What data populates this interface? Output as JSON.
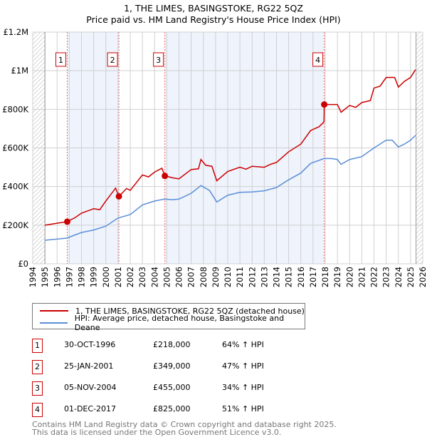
{
  "title": "1, THE LIMES, BASINGSTOKE, RG22 5QZ",
  "subtitle": "Price paid vs. HM Land Registry's House Price Index (HPI)",
  "chart_data": {
    "type": "line",
    "xlim": [
      1994,
      2026
    ],
    "ylim": [
      0,
      1200000
    ],
    "yticks": [
      {
        "v": 0,
        "label": "£0"
      },
      {
        "v": 200000,
        "label": "£200K"
      },
      {
        "v": 400000,
        "label": "£400K"
      },
      {
        "v": 600000,
        "label": "£600K"
      },
      {
        "v": 800000,
        "label": "£800K"
      },
      {
        "v": 1000000,
        "label": "£1M"
      },
      {
        "v": 1200000,
        "label": "£1.2M"
      }
    ],
    "xticks": [
      "1994",
      "1995",
      "1996",
      "1997",
      "1998",
      "1999",
      "2000",
      "2001",
      "2002",
      "2003",
      "2004",
      "2005",
      "2006",
      "2007",
      "2008",
      "2009",
      "2010",
      "2011",
      "2012",
      "2013",
      "2014",
      "2015",
      "2016",
      "2017",
      "2018",
      "2019",
      "2020",
      "2021",
      "2022",
      "2023",
      "2024",
      "2025",
      "2026"
    ],
    "series": [
      {
        "name": "1, THE LIMES, BASINGSTOKE, RG22 5QZ (detached house)",
        "color": "#cc0000",
        "x": [
          1995,
          1996,
          1996.83,
          1997.5,
          1998,
          1999,
          1999.5,
          2000,
          2000.8,
          2001.07,
          2001.7,
          2002,
          2003,
          2003.5,
          2004,
          2004.6,
          2004.84,
          2005.5,
          2006,
          2007,
          2007.6,
          2007.8,
          2008.2,
          2008.7,
          2009.1,
          2010,
          2011,
          2011.5,
          2012,
          2013,
          2013.5,
          2014,
          2015,
          2016,
          2016.8,
          2017.5,
          2017.9,
          2017.92,
          2018.5,
          2019,
          2019.3,
          2020,
          2020.5,
          2021,
          2021.7,
          2022,
          2022.5,
          2023,
          2023.7,
          2024,
          2024.5,
          2025,
          2025.4
        ],
        "y": [
          200000,
          210000,
          218000,
          240000,
          262000,
          285000,
          280000,
          325000,
          392000,
          349000,
          390000,
          380000,
          460000,
          450000,
          475000,
          495000,
          455000,
          445000,
          440000,
          488000,
          492000,
          540000,
          510000,
          505000,
          430000,
          478000,
          500000,
          490000,
          505000,
          500000,
          515000,
          525000,
          580000,
          620000,
          690000,
          710000,
          735000,
          825000,
          825000,
          825000,
          785000,
          820000,
          810000,
          835000,
          845000,
          910000,
          920000,
          965000,
          965000,
          915000,
          945000,
          965000,
          1005000
        ]
      },
      {
        "name": "HPI: Average price, detached house, Basingstoke and Deane",
        "color": "#5b8fd6",
        "x": [
          1995,
          1996,
          1996.8,
          1997.5,
          1998,
          1999,
          2000,
          2001,
          2002,
          2003,
          2004,
          2004.8,
          2005.5,
          2006,
          2007,
          2007.8,
          2008.5,
          2009.1,
          2010,
          2011,
          2012,
          2013,
          2014,
          2015,
          2016,
          2016.8,
          2017.9,
          2018.5,
          2019,
          2019.3,
          2020,
          2021,
          2022,
          2023,
          2023.5,
          2024,
          2024.5,
          2025,
          2025.4
        ],
        "y": [
          122000,
          128000,
          133000,
          150000,
          162000,
          175000,
          195000,
          237000,
          255000,
          305000,
          325000,
          335000,
          332000,
          335000,
          365000,
          405000,
          380000,
          320000,
          355000,
          370000,
          372000,
          378000,
          395000,
          435000,
          470000,
          520000,
          545000,
          545000,
          540000,
          515000,
          540000,
          555000,
          600000,
          640000,
          640000,
          605000,
          620000,
          640000,
          665000
        ]
      }
    ],
    "sales": [
      {
        "id": "1",
        "x": 1996.83,
        "y": 218000,
        "date": "30-OCT-1996",
        "price": "£218,000",
        "hpi": "64% ↑ HPI"
      },
      {
        "id": "2",
        "x": 2001.07,
        "y": 349000,
        "date": "25-JAN-2001",
        "price": "£349,000",
        "hpi": "47% ↑ HPI"
      },
      {
        "id": "3",
        "x": 2004.84,
        "y": 455000,
        "date": "05-NOV-2004",
        "price": "£455,000",
        "hpi": "34% ↑ HPI"
      },
      {
        "id": "4",
        "x": 2017.92,
        "y": 825000,
        "date": "01-DEC-2017",
        "price": "£825,000",
        "hpi": "51% ↑ HPI"
      }
    ]
  },
  "legend": {
    "price": "1, THE LIMES, BASINGSTOKE, RG22 5QZ (detached house)",
    "hpi": "HPI: Average price, detached house, Basingstoke and Deane"
  },
  "footer": {
    "line1": "Contains HM Land Registry data © Crown copyright and database right 2025.",
    "line2": "This data is licensed under the Open Government Licence v3.0."
  }
}
